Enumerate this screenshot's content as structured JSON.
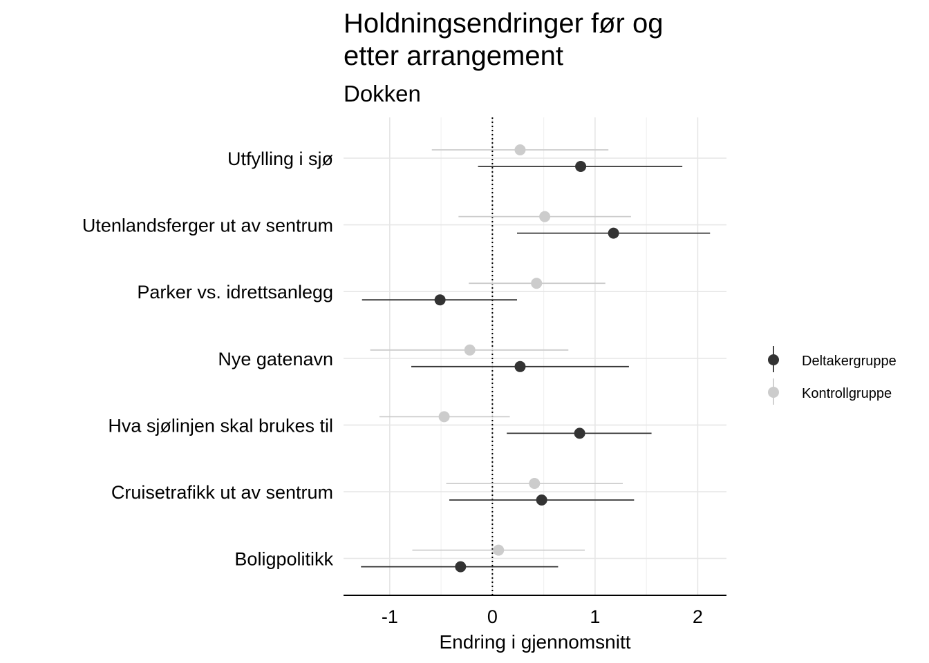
{
  "chart_data": {
    "type": "dot-errorbar",
    "title_lines": [
      "Holdningsendringer før og",
      "etter arrangement"
    ],
    "subtitle": "Dokken",
    "xlabel": "Endring i gjennomsnitt",
    "ylabel": "",
    "xlim": [
      -1.45,
      2.28
    ],
    "x_ticks": [
      -1,
      0,
      1,
      2
    ],
    "x_tick_labels": [
      "-1",
      "0",
      "1",
      "2"
    ],
    "reference_line": 0,
    "grid": true,
    "legend_position": "right",
    "categories": [
      "Utfylling i sjø",
      "Utenlandsferger ut av sentrum",
      "Parker vs. idrettsanlegg",
      "Nye gatenavn",
      "Hva sjølinjen skal brukes til",
      "Cruisetrafikk ut av sentrum",
      "Boligpolitikk"
    ],
    "series": [
      {
        "name": "Deltakergruppe",
        "color": "#333333",
        "mean": [
          0.86,
          1.18,
          -0.51,
          0.27,
          0.85,
          0.48,
          -0.31
        ],
        "lower": [
          -0.14,
          0.24,
          -1.27,
          -0.79,
          0.14,
          -0.42,
          -1.28
        ],
        "upper": [
          1.85,
          2.12,
          0.24,
          1.33,
          1.55,
          1.38,
          0.64
        ]
      },
      {
        "name": "Kontrollgruppe",
        "color": "#cccccc",
        "mean": [
          0.27,
          0.51,
          0.43,
          -0.22,
          -0.47,
          0.41,
          0.06
        ],
        "lower": [
          -0.59,
          -0.33,
          -0.23,
          -1.19,
          -1.1,
          -0.45,
          -0.78
        ],
        "upper": [
          1.13,
          1.35,
          1.1,
          0.74,
          0.17,
          1.27,
          0.9
        ]
      }
    ]
  }
}
